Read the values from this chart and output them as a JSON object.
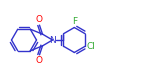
{
  "bg_color": "#ffffff",
  "line_color": "#3333cc",
  "atom_colors": {
    "O": "#ff0000",
    "N": "#3333cc",
    "F": "#33aa33",
    "Cl": "#33aa33"
  },
  "line_width": 1.0,
  "font_size": 6.5,
  "figsize": [
    1.56,
    0.8
  ],
  "dpi": 100,
  "xlim": [
    0,
    156
  ],
  "ylim": [
    0,
    80
  ]
}
